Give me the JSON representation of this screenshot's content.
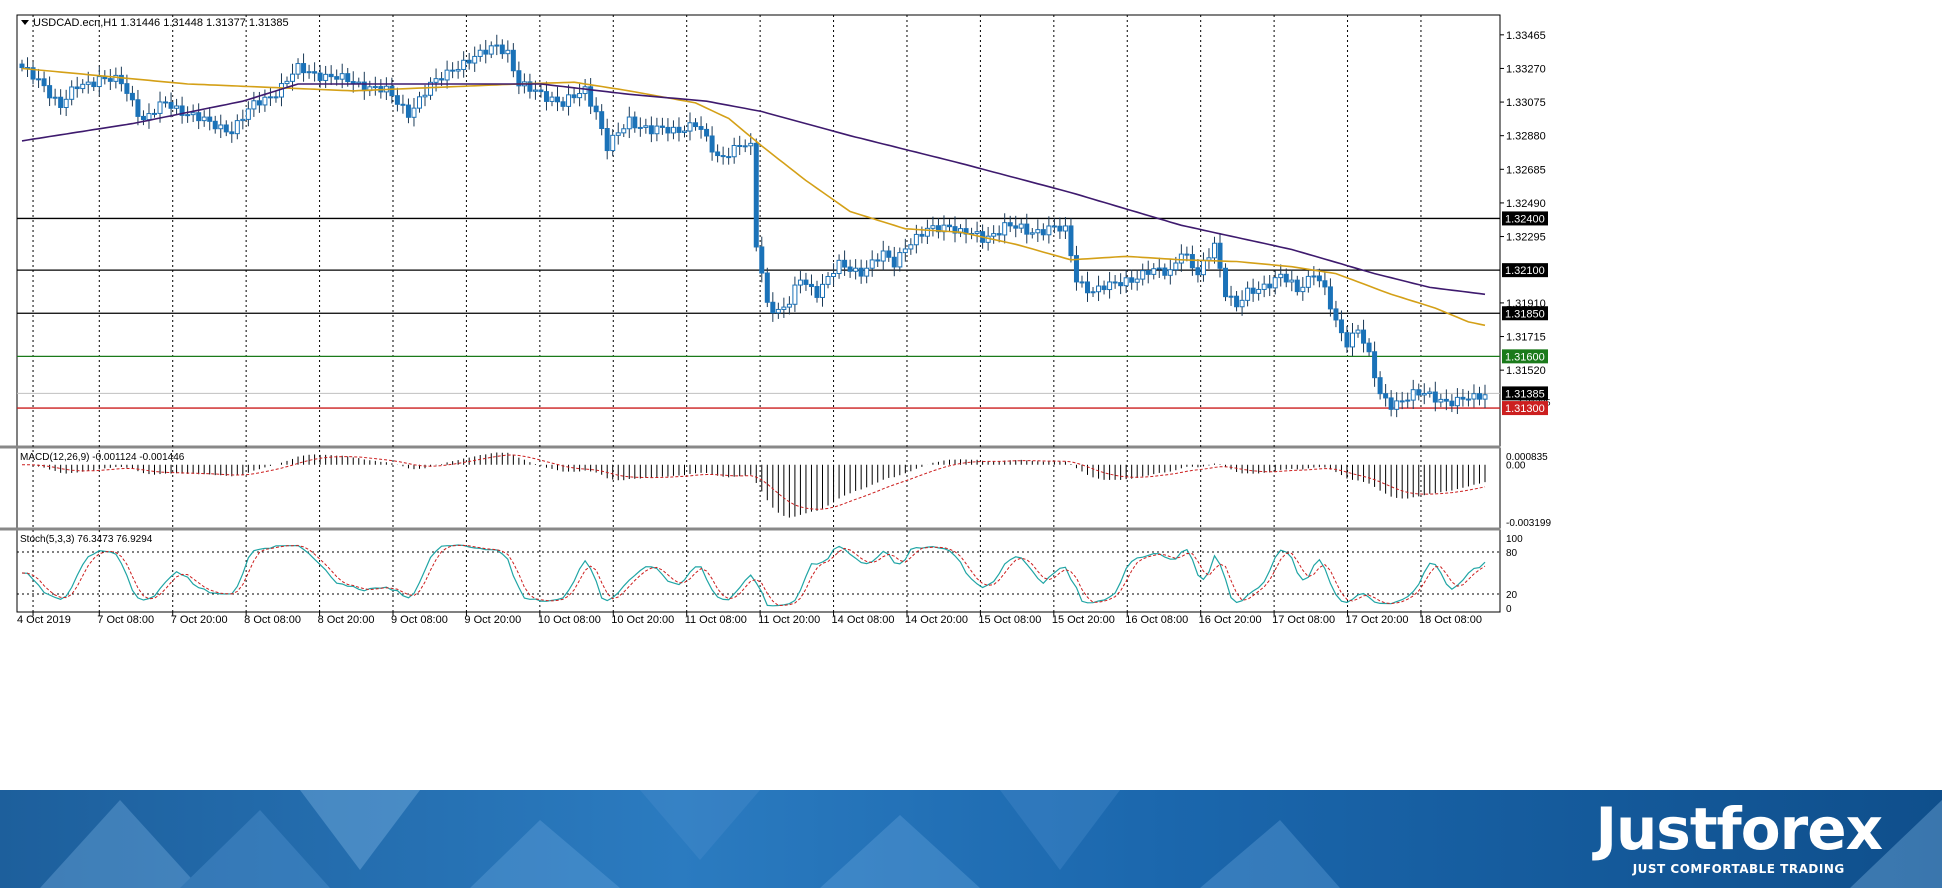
{
  "colors": {
    "bull": "#ffffff",
    "bear": "#1b72b8",
    "candle_outline": "#1b72b8",
    "wick": "#1b3a57",
    "ma_fast": "#d4a017",
    "ma_slow": "#3e1a6e",
    "support_line": "#1a7a1a",
    "red_line": "#cc1f1f",
    "black_line": "#000000",
    "grid": "#000000",
    "macd_hist": "#000000",
    "macd_signal": "#cc1f1f",
    "stoch_main": "#20a5a5",
    "stoch_signal": "#cc1f1f",
    "current_price_line": "#c0c0c0"
  },
  "chart_data": {
    "type": "candlestick",
    "title": "USDCAD.ecn,H1  1.31446 1.31448 1.31377 1.31385",
    "symbol_info": "USDCAD.ecn,H1  1.31446 1.31448 1.31377 1.31385",
    "price_axis": {
      "ylim": [
        1.3108,
        1.3358
      ],
      "ticks": [
        "1.33465",
        "1.33270",
        "1.33075",
        "1.32880",
        "1.32685",
        "1.32490",
        "1.32295",
        "1.31910",
        "1.31715",
        "1.31520"
      ],
      "current_price": 1.31385,
      "current_price_label": "1.31385",
      "overlapped_label": "1.31225"
    },
    "levels": [
      {
        "price": 1.324,
        "label": "1.32400",
        "color": "#000000"
      },
      {
        "price": 1.321,
        "label": "1.32100",
        "color": "#000000"
      },
      {
        "price": 1.3185,
        "label": "1.31850",
        "color": "#000000"
      },
      {
        "price": 1.316,
        "label": "1.31600",
        "color": "#1a7a1a"
      },
      {
        "price": 1.313,
        "label": "1.31300",
        "color": "#cc1f1f"
      }
    ],
    "x_axis_labels": [
      "4 Oct 2019",
      "7 Oct 08:00",
      "7 Oct 20:00",
      "8 Oct 08:00",
      "8 Oct 20:00",
      "9 Oct 08:00",
      "9 Oct 20:00",
      "10 Oct 08:00",
      "10 Oct 20:00",
      "11 Oct 08:00",
      "11 Oct 20:00",
      "14 Oct 08:00",
      "14 Oct 20:00",
      "15 Oct 08:00",
      "15 Oct 20:00",
      "16 Oct 08:00",
      "16 Oct 20:00",
      "17 Oct 08:00",
      "17 Oct 20:00",
      "18 Oct 08:00"
    ],
    "waypoints": [
      [
        0,
        1.3326
      ],
      [
        4,
        1.3318
      ],
      [
        7,
        1.3305
      ],
      [
        10,
        1.3316
      ],
      [
        14,
        1.3322
      ],
      [
        18,
        1.3318
      ],
      [
        22,
        1.3298
      ],
      [
        26,
        1.3306
      ],
      [
        30,
        1.3302
      ],
      [
        34,
        1.3294
      ],
      [
        38,
        1.3292
      ],
      [
        42,
        1.3305
      ],
      [
        46,
        1.3314
      ],
      [
        50,
        1.3326
      ],
      [
        54,
        1.3324
      ],
      [
        58,
        1.332
      ],
      [
        62,
        1.3318
      ],
      [
        66,
        1.3313
      ],
      [
        70,
        1.3302
      ],
      [
        74,
        1.3316
      ],
      [
        78,
        1.3328
      ],
      [
        82,
        1.3332
      ],
      [
        86,
        1.3342
      ],
      [
        88,
        1.3336
      ],
      [
        90,
        1.3316
      ],
      [
        94,
        1.3314
      ],
      [
        98,
        1.3305
      ],
      [
        102,
        1.3316
      ],
      [
        104,
        1.3302
      ],
      [
        106,
        1.328
      ],
      [
        110,
        1.3298
      ],
      [
        114,
        1.329
      ],
      [
        118,
        1.3292
      ],
      [
        122,
        1.3294
      ],
      [
        126,
        1.3276
      ],
      [
        130,
        1.3282
      ],
      [
        132,
        1.328
      ],
      [
        133,
        1.3225
      ],
      [
        135,
        1.3192
      ],
      [
        137,
        1.3186
      ],
      [
        139,
        1.319
      ],
      [
        141,
        1.3205
      ],
      [
        144,
        1.3198
      ],
      [
        148,
        1.3212
      ],
      [
        152,
        1.321
      ],
      [
        156,
        1.3218
      ],
      [
        158,
        1.3214
      ],
      [
        160,
        1.3225
      ],
      [
        164,
        1.3232
      ],
      [
        168,
        1.3237
      ],
      [
        170,
        1.3232
      ],
      [
        174,
        1.3228
      ],
      [
        178,
        1.3236
      ],
      [
        182,
        1.3232
      ],
      [
        186,
        1.3235
      ],
      [
        189,
        1.3232
      ],
      [
        191,
        1.3205
      ],
      [
        194,
        1.3198
      ],
      [
        197,
        1.32
      ],
      [
        200,
        1.3205
      ],
      [
        204,
        1.3208
      ],
      [
        208,
        1.321
      ],
      [
        210,
        1.3222
      ],
      [
        213,
        1.3206
      ],
      [
        216,
        1.3226
      ],
      [
        218,
        1.3198
      ],
      [
        220,
        1.3188
      ],
      [
        222,
        1.3196
      ],
      [
        225,
        1.3202
      ],
      [
        228,
        1.3206
      ],
      [
        231,
        1.3198
      ],
      [
        234,
        1.321
      ],
      [
        236,
        1.3198
      ],
      [
        238,
        1.3178
      ],
      [
        240,
        1.3168
      ],
      [
        242,
        1.3178
      ],
      [
        244,
        1.316
      ],
      [
        246,
        1.3136
      ],
      [
        248,
        1.3132
      ],
      [
        250,
        1.3136
      ],
      [
        252,
        1.3138
      ],
      [
        256,
        1.3136
      ],
      [
        260,
        1.3134
      ],
      [
        263,
        1.3135
      ],
      [
        265,
        1.3139
      ]
    ],
    "series": [
      {
        "type": "line",
        "values": [
          [
            0,
            1.3327
          ],
          [
            30,
            1.3318
          ],
          [
            60,
            1.3314
          ],
          [
            90,
            1.3318
          ],
          [
            100,
            1.3319
          ],
          [
            110,
            1.3314
          ],
          [
            122,
            1.3307
          ],
          [
            128,
            1.3298
          ],
          [
            134,
            1.3282
          ],
          [
            142,
            1.3262
          ],
          [
            150,
            1.3244
          ],
          [
            160,
            1.3234
          ],
          [
            170,
            1.3232
          ],
          [
            180,
            1.3225
          ],
          [
            190,
            1.3216
          ],
          [
            200,
            1.3218
          ],
          [
            210,
            1.3216
          ],
          [
            220,
            1.3215
          ],
          [
            230,
            1.3212
          ],
          [
            238,
            1.3208
          ],
          [
            248,
            1.3196
          ],
          [
            256,
            1.3188
          ],
          [
            262,
            1.318
          ],
          [
            265,
            1.3178
          ]
        ]
      },
      {
        "type": "line",
        "values": [
          [
            0,
            1.3285
          ],
          [
            20,
            1.3295
          ],
          [
            40,
            1.3308
          ],
          [
            50,
            1.3318
          ],
          [
            70,
            1.3318
          ],
          [
            94,
            1.3318
          ],
          [
            110,
            1.3312
          ],
          [
            124,
            1.3308
          ],
          [
            134,
            1.3302
          ],
          [
            150,
            1.3288
          ],
          [
            170,
            1.3272
          ],
          [
            190,
            1.3255
          ],
          [
            210,
            1.3236
          ],
          [
            230,
            1.3222
          ],
          [
            245,
            1.3208
          ],
          [
            255,
            1.32
          ],
          [
            265,
            1.3196
          ]
        ]
      }
    ],
    "macd": {
      "label": "MACD(12,26,9) -0.001124 -0.001446",
      "ticks": [
        "0.000835",
        "0.00",
        "-0.003199"
      ],
      "ylim": [
        -0.0034,
        0.0009
      ]
    },
    "stoch": {
      "label": "Stoch(5,3,3) 76.3473 76.9294",
      "ticks": [
        "100",
        "80",
        "20",
        "0"
      ],
      "ylim": [
        0,
        100
      ],
      "levels": [
        80,
        20
      ]
    }
  },
  "brand": {
    "logo": "Justforex",
    "tagline": "JUST COMFORTABLE TRADING"
  }
}
